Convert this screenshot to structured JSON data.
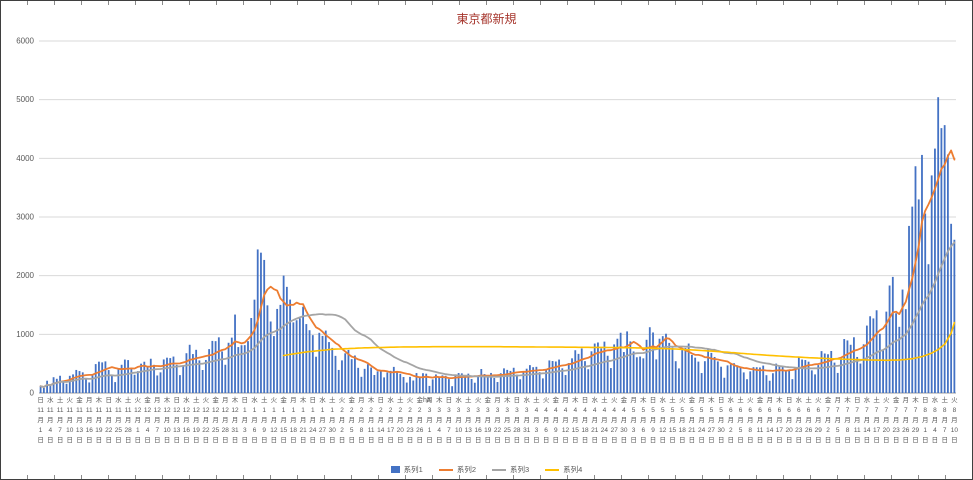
{
  "chart_data": {
    "type": "combo_bar_line",
    "title": "東京都新規",
    "title_color": "#a6352c",
    "legend_position": "bottom",
    "gridlines": "horizontal",
    "y_axis": {
      "min": 0,
      "max": 6000,
      "step": 1000,
      "tick_labels": [
        "0",
        "1000",
        "2000",
        "3000",
        "4000",
        "5000",
        "6000"
      ]
    },
    "x_tick_interval_days": 3,
    "x_tick_labels": [
      "日 11月1日",
      "水 11月4日",
      "土 11月7日",
      "火 11月10日",
      "金 11月13日",
      "月 11月16日",
      "木 11月19日",
      "日 11月22日",
      "水 11月25日",
      "土 11月28日",
      "火 12月1日",
      "金 12月4日",
      "月 12月7日",
      "木 12月10日",
      "日 12月13日",
      "水 12月16日",
      "土 12月19日",
      "火 12月22日",
      "金 12月25日",
      "月 12月28日",
      "木 12月31日",
      "日 1月3日",
      "水 1月6日",
      "土 1月9日",
      "火 1月12日",
      "金 1月15日",
      "月 1月18日",
      "木 1月21日",
      "日 1月24日",
      "水 1月27日",
      "土 1月30日",
      "火 2月2日",
      "金 2月5日",
      "月 2月8日",
      "木 2月11日",
      "日 2月14日",
      "水 2月17日",
      "土 2月20日",
      "火 2月23日",
      "金 2月26日",
      "月 3月1日",
      "木 3月4日",
      "日 3月7日",
      "水 3月10日",
      "土 3月13日",
      "火 3月16日",
      "金 3月19日",
      "月 3月22日",
      "木 3月25日",
      "日 3月28日",
      "水 3月31日",
      "土 4月3日",
      "火 4月6日",
      "金 4月9日",
      "月 4月12日",
      "木 4月15日",
      "日 4月18日",
      "水 4月21日",
      "土 4月24日",
      "火 4月27日",
      "金 4月30日",
      "月 5月3日",
      "木 5月6日",
      "日 5月9日",
      "水 5月12日",
      "土 5月15日",
      "火 5月18日",
      "金 5月21日",
      "月 5月24日",
      "木 5月27日",
      "日 5月30日",
      "水 6月2日",
      "土 6月5日",
      "火 6月8日",
      "金 6月11日",
      "月 6月14日",
      "木 6月17日",
      "日 6月20日",
      "水 6月23日",
      "土 6月26日",
      "火 6月29日",
      "金 7月2日",
      "月 7月5日",
      "木 7月8日",
      "日 7月11日",
      "水 7月14日",
      "土 7月17日",
      "火 7月20日",
      "金 7月23日",
      "月 7月26日",
      "木 7月29日",
      "日 8月1日",
      "水 8月4日",
      "土 8月7日",
      "火 8月10日"
    ],
    "series": [
      {
        "name": "系列1",
        "type": "bar",
        "color": "#4472c4",
        "values": [
          116,
          87,
          209,
          122,
          269,
          242,
          294,
          189,
          157,
          293,
          317,
          393,
          374,
          352,
          255,
          180,
          298,
          493,
          534,
          522,
          539,
          391,
          314,
          186,
          401,
          481,
          570,
          561,
          418,
          311,
          372,
          500,
          533,
          449,
          584,
          480,
          299,
          352,
          572,
          602,
          595,
          621,
          480,
          305,
          460,
          678,
          822,
          664,
          736,
          556,
          392,
          563,
          748,
          888,
          884,
          949,
          708,
          481,
          856,
          944,
          1337,
          783,
          814,
          816,
          884,
          1278,
          1591,
          2447,
          2392,
          2268,
          1494,
          1219,
          970,
          1433,
          1502,
          2001,
          1809,
          1592,
          1204,
          1240,
          1274,
          1471,
          1175,
          1070,
          986,
          618,
          1026,
          973,
          1064,
          868,
          769,
          633,
          393,
          556,
          676,
          734,
          577,
          639,
          429,
          276,
          412,
          491,
          434,
          307,
          369,
          371,
          266,
          350,
          378,
          445,
          353,
          327,
          272,
          178,
          275,
          213,
          340,
          270,
          337,
          329,
          121,
          232,
          316,
          279,
          301,
          293,
          237,
          116,
          290,
          340,
          335,
          304,
          330,
          239,
          175,
          300,
          409,
          323,
          303,
          342,
          256,
          187,
          337,
          420,
          394,
          376,
          430,
          313,
          234,
          364,
          414,
          475,
          440,
          446,
          355,
          249,
          399,
          555,
          545,
          537,
          570,
          421,
          306,
          510,
          591,
          729,
          667,
          759,
          543,
          405,
          711,
          843,
          861,
          759,
          876,
          635,
          425,
          828,
          925,
          1027,
          698,
          1050,
          879,
          708,
          609,
          621,
          591,
          907,
          1121,
          1032,
          573,
          925,
          969,
          1010,
          854,
          772,
          542,
          419,
          732,
          766,
          843,
          649,
          602,
          535,
          340,
          542,
          743,
          684,
          614,
          539,
          448,
          260,
          471,
          487,
          508,
          472,
          436,
          351,
          235,
          369,
          440,
          439,
          435,
          467,
          304,
          209,
          337,
          501,
          452,
          453,
          388,
          376,
          236,
          435,
          619,
          570,
          562,
          534,
          386,
          317,
          476,
          714,
          673,
          660,
          716,
          518,
          342,
          593,
          920,
          896,
          822,
          950,
          614,
          502,
          830,
          1149,
          1308,
          1271,
          1410,
          1008,
          727,
          1387,
          1832,
          1979,
          1359,
          1128,
          1763,
          1429,
          2848,
          3177,
          3865,
          3300,
          4058,
          3058,
          2195,
          3709,
          4166,
          5042,
          4515,
          4566,
          4066,
          2884,
          2612
        ]
      },
      {
        "name": "系列2",
        "type": "line",
        "color": "#ed7d31",
        "derivation": "7-day moving average of 系列1",
        "window": 7
      },
      {
        "name": "系列3",
        "type": "line",
        "color": "#a5a5a5",
        "derivation": "28-day moving average of 系列1",
        "window": 28
      },
      {
        "name": "系列4",
        "type": "line",
        "color": "#ffc000",
        "points": [
          [
            75,
            640
          ],
          [
            82,
            700
          ],
          [
            90,
            745
          ],
          [
            100,
            770
          ],
          [
            112,
            785
          ],
          [
            125,
            790
          ],
          [
            138,
            790
          ],
          [
            152,
            785
          ],
          [
            165,
            780
          ],
          [
            178,
            775
          ],
          [
            188,
            765
          ],
          [
            196,
            750
          ],
          [
            204,
            725
          ],
          [
            212,
            695
          ],
          [
            220,
            660
          ],
          [
            228,
            630
          ],
          [
            236,
            605
          ],
          [
            244,
            585
          ],
          [
            250,
            572
          ],
          [
            256,
            562
          ],
          [
            261,
            558
          ],
          [
            265,
            562
          ],
          [
            269,
            585
          ],
          [
            272,
            620
          ],
          [
            275,
            680
          ],
          [
            277,
            740
          ],
          [
            279,
            830
          ],
          [
            281,
            1020
          ],
          [
            282,
            1200
          ]
        ]
      }
    ],
    "stray_label": {
      "text": "ha",
      "day_index": 118
    }
  }
}
